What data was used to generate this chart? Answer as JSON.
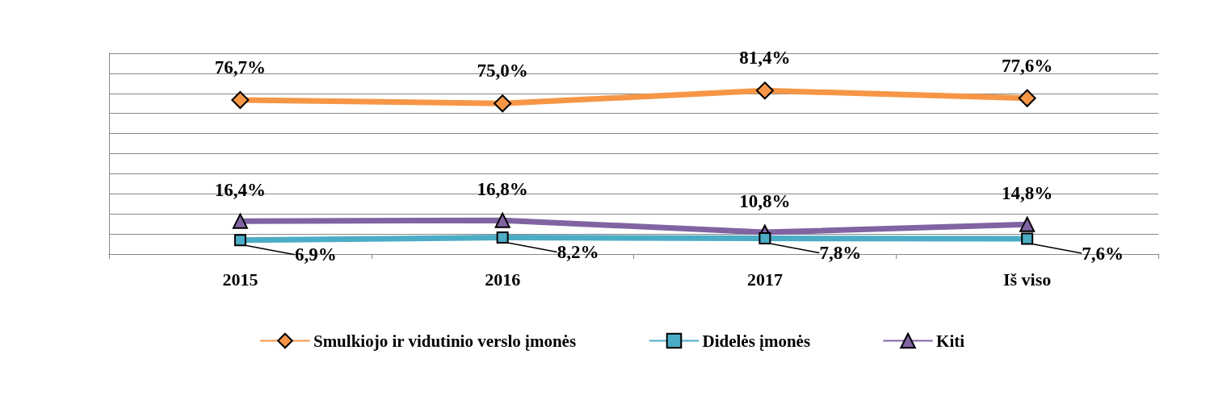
{
  "chart_data": {
    "type": "line",
    "categories": [
      "2015",
      "2016",
      "2017",
      "Iš viso"
    ],
    "series": [
      {
        "name": "Smulkiojo ir vidutinio verslo įmonės",
        "color": "#f79646",
        "marker": "diamond",
        "values": [
          76.7,
          75.0,
          81.4,
          77.6
        ],
        "value_labels": [
          "76,7%",
          "75,0%",
          "81,4%",
          "77,6%"
        ]
      },
      {
        "name": "Didelės įmonės",
        "color": "#4bacc6",
        "marker": "square",
        "values": [
          6.9,
          8.2,
          7.8,
          7.6
        ],
        "value_labels": [
          "6,9%",
          "8,2%",
          "7,8%",
          "7,6%"
        ]
      },
      {
        "name": "Kiti",
        "color": "#8064a2",
        "marker": "triangle",
        "values": [
          16.4,
          16.8,
          10.8,
          14.8
        ],
        "value_labels": [
          "16,4%",
          "16,8%",
          "10,8%",
          "14,8%"
        ]
      }
    ],
    "ylim": [
      0,
      100
    ],
    "yticks": [
      {
        "value": 0,
        "label": null
      },
      {
        "value": 10,
        "label": null
      },
      {
        "value": 20,
        "label": null
      },
      {
        "value": 30,
        "label": null
      },
      {
        "value": 40,
        "label": null
      },
      {
        "value": 50,
        "label": null
      },
      {
        "value": 60,
        "label": null
      },
      {
        "value": 70,
        "label": null
      },
      {
        "value": 80,
        "label": null
      },
      {
        "value": 90,
        "label": null
      },
      {
        "value": 100,
        "label": null
      }
    ],
    "tick_labels": "x",
    "grid": "y",
    "legend": "bottom",
    "line_style": "solid"
  }
}
